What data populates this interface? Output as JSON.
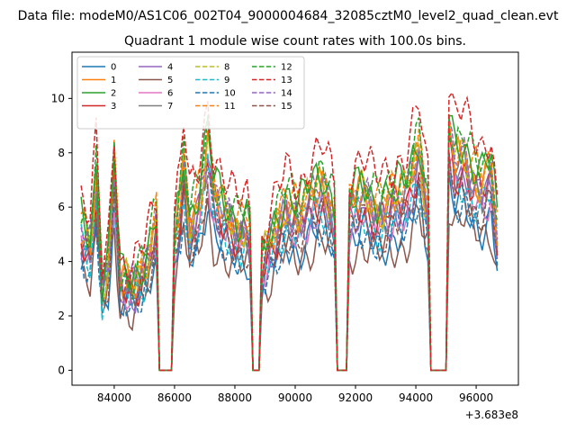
{
  "chart_data": {
    "type": "line",
    "suptitle": "Data file: modeM0/AS1C06_002T04_9000004684_32085cztM0_level2_quad_clean.evt",
    "title": "Quadrant 1 module wise count rates with 100.0s bins.",
    "xlabel": "",
    "ylabel": "",
    "x_offset_label": "+3.683e8",
    "xlim": [
      82600,
      97400
    ],
    "ylim": [
      -0.55,
      11.7
    ],
    "x_ticks": [
      84000,
      86000,
      88000,
      90000,
      92000,
      94000,
      96000
    ],
    "x_tick_labels": [
      "84000",
      "86000",
      "88000",
      "90000",
      "92000",
      "94000",
      "96000"
    ],
    "y_ticks": [
      0,
      2,
      4,
      6,
      8,
      10
    ],
    "y_tick_labels": [
      "0",
      "2",
      "4",
      "6",
      "8",
      "10"
    ],
    "legend_position": "upper-left",
    "legend_columns": 4,
    "series": [
      {
        "name": "0",
        "color": "#1f77b4",
        "dash": "solid"
      },
      {
        "name": "1",
        "color": "#ff7f0e",
        "dash": "solid"
      },
      {
        "name": "2",
        "color": "#2ca02c",
        "dash": "solid"
      },
      {
        "name": "3",
        "color": "#d62728",
        "dash": "solid"
      },
      {
        "name": "4",
        "color": "#9467bd",
        "dash": "solid"
      },
      {
        "name": "5",
        "color": "#8c564b",
        "dash": "solid"
      },
      {
        "name": "6",
        "color": "#e377c2",
        "dash": "solid"
      },
      {
        "name": "7",
        "color": "#7f7f7f",
        "dash": "solid"
      },
      {
        "name": "8",
        "color": "#bcbd22",
        "dash": "dashed"
      },
      {
        "name": "9",
        "color": "#17becf",
        "dash": "dashed"
      },
      {
        "name": "10",
        "color": "#1f77b4",
        "dash": "dashed"
      },
      {
        "name": "11",
        "color": "#ff7f0e",
        "dash": "dashed"
      },
      {
        "name": "12",
        "color": "#2ca02c",
        "dash": "dashed"
      },
      {
        "name": "13",
        "color": "#d62728",
        "dash": "dashed"
      },
      {
        "name": "14",
        "color": "#9467bd",
        "dash": "dashed"
      },
      {
        "name": "15",
        "color": "#8c564b",
        "dash": "dashed"
      }
    ],
    "bin_seconds": 100,
    "x_start": 82900,
    "x_end": 96700,
    "zero_intervals": [
      [
        85400,
        86000
      ],
      [
        88500,
        88900
      ],
      [
        91300,
        91800
      ],
      [
        94400,
        95100
      ]
    ],
    "baseline": [
      [
        82900,
        5.2
      ],
      [
        83200,
        4.5
      ],
      [
        83400,
        7.0
      ],
      [
        83600,
        3.0
      ],
      [
        83800,
        4.0
      ],
      [
        84000,
        7.4
      ],
      [
        84200,
        3.3
      ],
      [
        84600,
        3.0
      ],
      [
        85000,
        3.8
      ],
      [
        85300,
        5.0
      ],
      [
        85400,
        5.4
      ],
      [
        86000,
        4.8
      ],
      [
        86200,
        6.2
      ],
      [
        86300,
        7.5
      ],
      [
        86500,
        5.3
      ],
      [
        86800,
        6.1
      ],
      [
        87100,
        8.2
      ],
      [
        87300,
        6.5
      ],
      [
        87700,
        5.6
      ],
      [
        88100,
        5.1
      ],
      [
        88400,
        5.4
      ],
      [
        88500,
        4.9
      ],
      [
        88900,
        3.9
      ],
      [
        89300,
        5.0
      ],
      [
        89700,
        6.1
      ],
      [
        90100,
        5.6
      ],
      [
        90500,
        6.3
      ],
      [
        90900,
        6.7
      ],
      [
        91200,
        6.0
      ],
      [
        91300,
        5.6
      ],
      [
        91800,
        6.0
      ],
      [
        92200,
        6.4
      ],
      [
        92700,
        5.8
      ],
      [
        93200,
        6.2
      ],
      [
        93700,
        6.5
      ],
      [
        94100,
        8.0
      ],
      [
        94300,
        6.4
      ],
      [
        94400,
        6.0
      ],
      [
        95100,
        8.7
      ],
      [
        95300,
        7.6
      ],
      [
        95600,
        7.8
      ],
      [
        95900,
        7.0
      ],
      [
        96200,
        6.8
      ],
      [
        96500,
        7.2
      ],
      [
        96700,
        5.0
      ]
    ],
    "series_scales": [
      0.78,
      1.02,
      1.08,
      0.95,
      0.93,
      0.72,
      0.9,
      0.97,
      1.02,
      0.89,
      0.82,
      1.06,
      1.1,
      1.22,
      1.0,
      0.85
    ]
  }
}
